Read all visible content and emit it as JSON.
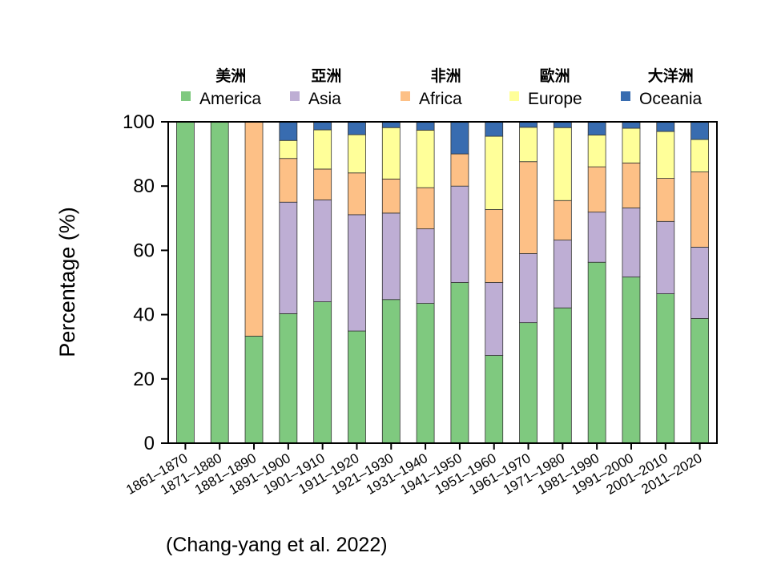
{
  "chart_data": {
    "type": "bar",
    "stacked": true,
    "categories": [
      "1861–1870",
      "1871–1880",
      "1881–1890",
      "1891–1900",
      "1901–1910",
      "1911–1920",
      "1921–1930",
      "1931–1940",
      "1941–1950",
      "1951–1960",
      "1961–1970",
      "1971–1980",
      "1981–1990",
      "1991–2000",
      "2001–2010",
      "2011–2020"
    ],
    "series": [
      {
        "name": "America",
        "name_zh": "美洲",
        "color": "#7fc97f",
        "values": [
          100,
          100,
          33.3,
          40.3,
          44.0,
          34.9,
          44.7,
          43.5,
          50.0,
          27.3,
          37.5,
          42.1,
          56.3,
          51.7,
          46.5,
          38.8
        ]
      },
      {
        "name": "Asia",
        "name_zh": "亞洲",
        "color": "#beaed4",
        "values": [
          0,
          0,
          0,
          34.7,
          31.7,
          36.2,
          26.9,
          23.2,
          30.0,
          22.7,
          21.5,
          21.1,
          15.6,
          21.5,
          22.5,
          22.2
        ]
      },
      {
        "name": "Africa",
        "name_zh": "非洲",
        "color": "#fdc086",
        "values": [
          0,
          0,
          66.7,
          13.6,
          9.6,
          13.0,
          10.6,
          12.8,
          10.0,
          22.7,
          28.6,
          12.3,
          14.1,
          14.0,
          13.4,
          23.4
        ]
      },
      {
        "name": "Europe",
        "name_zh": "歐洲",
        "color": "#ffff99",
        "values": [
          0,
          0,
          0,
          5.6,
          12.2,
          11.9,
          16.0,
          17.9,
          0,
          22.8,
          10.7,
          22.7,
          9.9,
          10.8,
          14.6,
          10.1
        ]
      },
      {
        "name": "Oceania",
        "name_zh": "大洋洲",
        "color": "#386cb0",
        "values": [
          0,
          0,
          0,
          5.8,
          2.5,
          4.0,
          1.8,
          2.6,
          10.0,
          4.5,
          1.7,
          1.8,
          4.1,
          2.0,
          3.0,
          5.5
        ]
      }
    ],
    "ylabel": "Percentage (%)",
    "xlabel": "",
    "ylim": [
      0,
      100
    ],
    "yticks": [
      0,
      20,
      40,
      60,
      80,
      100
    ],
    "grid": false,
    "legend_position": "top"
  },
  "citation": "(Chang-yang et al. 2022)"
}
